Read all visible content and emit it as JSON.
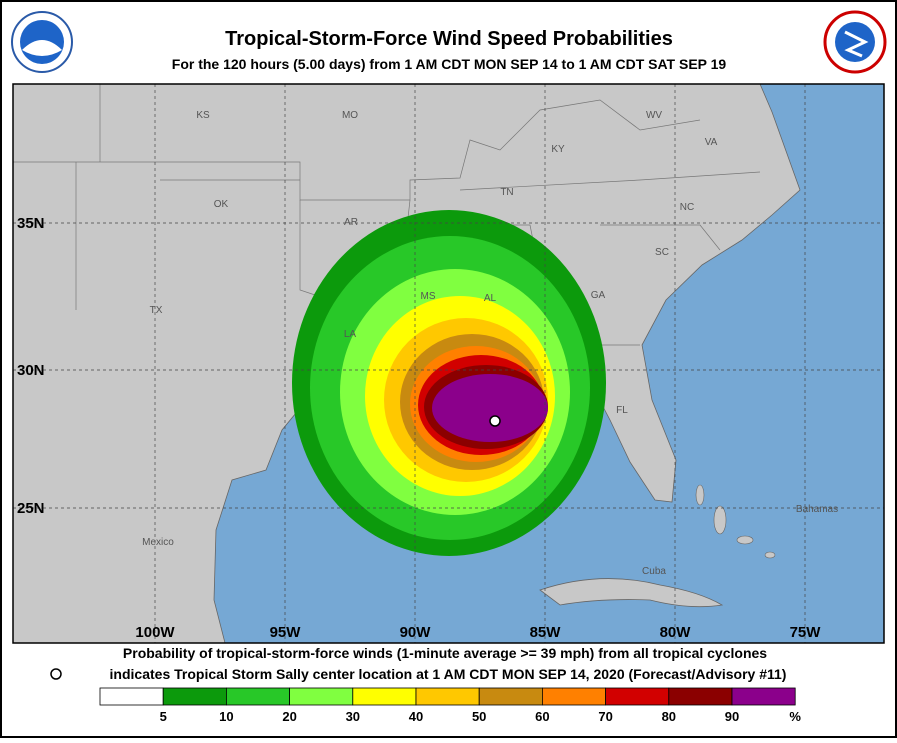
{
  "header": {
    "title": "Tropical-Storm-Force Wind Speed Probabilities",
    "subtitle": "For the 120 hours (5.00 days) from 1 AM CDT MON SEP 14 to 1 AM CDT SAT SEP 19"
  },
  "map": {
    "place_labels": [
      "KS",
      "MO",
      "WV",
      "KY",
      "VA",
      "TN",
      "OK",
      "NC",
      "AR",
      "SC",
      "MS",
      "AL",
      "GA",
      "TX",
      "LA",
      "FL",
      "Mexico",
      "Bahamas",
      "Cuba"
    ],
    "lat_labels": [
      "35N",
      "30N",
      "25N"
    ],
    "lon_labels": [
      "100W",
      "95W",
      "90W",
      "85W",
      "80W",
      "75W"
    ]
  },
  "footer": {
    "line1": "Probability of tropical-storm-force winds (1-minute average >= 39 mph) from all tropical cyclones",
    "line2": "indicates Tropical Storm Sally center location at 1 AM CDT MON SEP 14, 2020 (Forecast/Advisory #11)"
  },
  "legend": {
    "labels": [
      "5",
      "10",
      "20",
      "30",
      "40",
      "50",
      "60",
      "70",
      "80",
      "90",
      "%"
    ],
    "colors": [
      "#ffffff",
      "#0c9a0c",
      "#28c828",
      "#80ff40",
      "#ffff00",
      "#ffc800",
      "#c88a10",
      "#ff8000",
      "#d20000",
      "#8b0000",
      "#8b008b"
    ]
  }
}
